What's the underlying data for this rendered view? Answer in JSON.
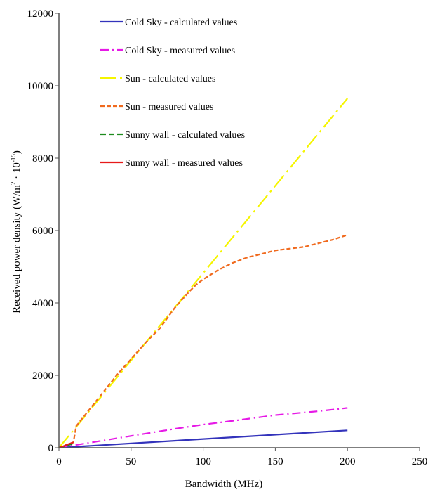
{
  "chart_data": {
    "type": "line",
    "xlabel": "Bandwidth  (MHz)",
    "ylabel_main": "Received power density  (W/m",
    "ylabel_sup1": "2",
    "ylabel_mid": " · 10",
    "ylabel_sup2": "-15",
    "ylabel_end": ")",
    "xlim": [
      0,
      250
    ],
    "ylim": [
      0,
      12000
    ],
    "xticks": [
      0,
      50,
      100,
      150,
      200,
      250
    ],
    "yticks": [
      0,
      2000,
      4000,
      6000,
      8000,
      10000,
      12000
    ],
    "grid": false,
    "legend_position": "top-left",
    "series": [
      {
        "name": "Cold Sky - calculated values",
        "color": "#3333bb",
        "dash": "solid",
        "points": [
          [
            0,
            0
          ],
          [
            200,
            480
          ]
        ]
      },
      {
        "name": "Cold Sky - measured values",
        "color": "#e619e6",
        "dash": "dashdot",
        "points": [
          [
            0,
            0
          ],
          [
            5,
            35
          ],
          [
            10,
            65
          ],
          [
            20,
            130
          ],
          [
            40,
            260
          ],
          [
            60,
            390
          ],
          [
            80,
            520
          ],
          [
            100,
            640
          ],
          [
            120,
            740
          ],
          [
            150,
            900
          ],
          [
            180,
            1010
          ],
          [
            200,
            1100
          ]
        ]
      },
      {
        "name": "Sun - calculated values",
        "color": "#f5f500",
        "dash": "longdashdot",
        "points": [
          [
            0,
            0
          ],
          [
            200,
            9650
          ]
        ]
      },
      {
        "name": "Sun - measured values",
        "color": "#f06a1e",
        "dash": "dashed",
        "points": [
          [
            0,
            0
          ],
          [
            3,
            60
          ],
          [
            5,
            80
          ],
          [
            10,
            150
          ],
          [
            12,
            600
          ],
          [
            20,
            1000
          ],
          [
            30,
            1500
          ],
          [
            40,
            2000
          ],
          [
            50,
            2450
          ],
          [
            60,
            2900
          ],
          [
            70,
            3300
          ],
          [
            80,
            3850
          ],
          [
            90,
            4300
          ],
          [
            95,
            4500
          ],
          [
            100,
            4650
          ],
          [
            110,
            4900
          ],
          [
            120,
            5100
          ],
          [
            130,
            5250
          ],
          [
            150,
            5450
          ],
          [
            170,
            5550
          ],
          [
            190,
            5750
          ],
          [
            200,
            5880
          ]
        ]
      },
      {
        "name": "Sunny wall - calculated values",
        "color": "#1e8c1e",
        "dash": "dashed-long",
        "points": [
          [
            0,
            0
          ],
          [
            5,
            50
          ],
          [
            10,
            120
          ]
        ]
      },
      {
        "name": "Sunny wall - measured values",
        "color": "#e61a1a",
        "dash": "solid",
        "points": [
          [
            0,
            0
          ],
          [
            3,
            40
          ],
          [
            6,
            90
          ],
          [
            10,
            150
          ]
        ]
      }
    ]
  }
}
